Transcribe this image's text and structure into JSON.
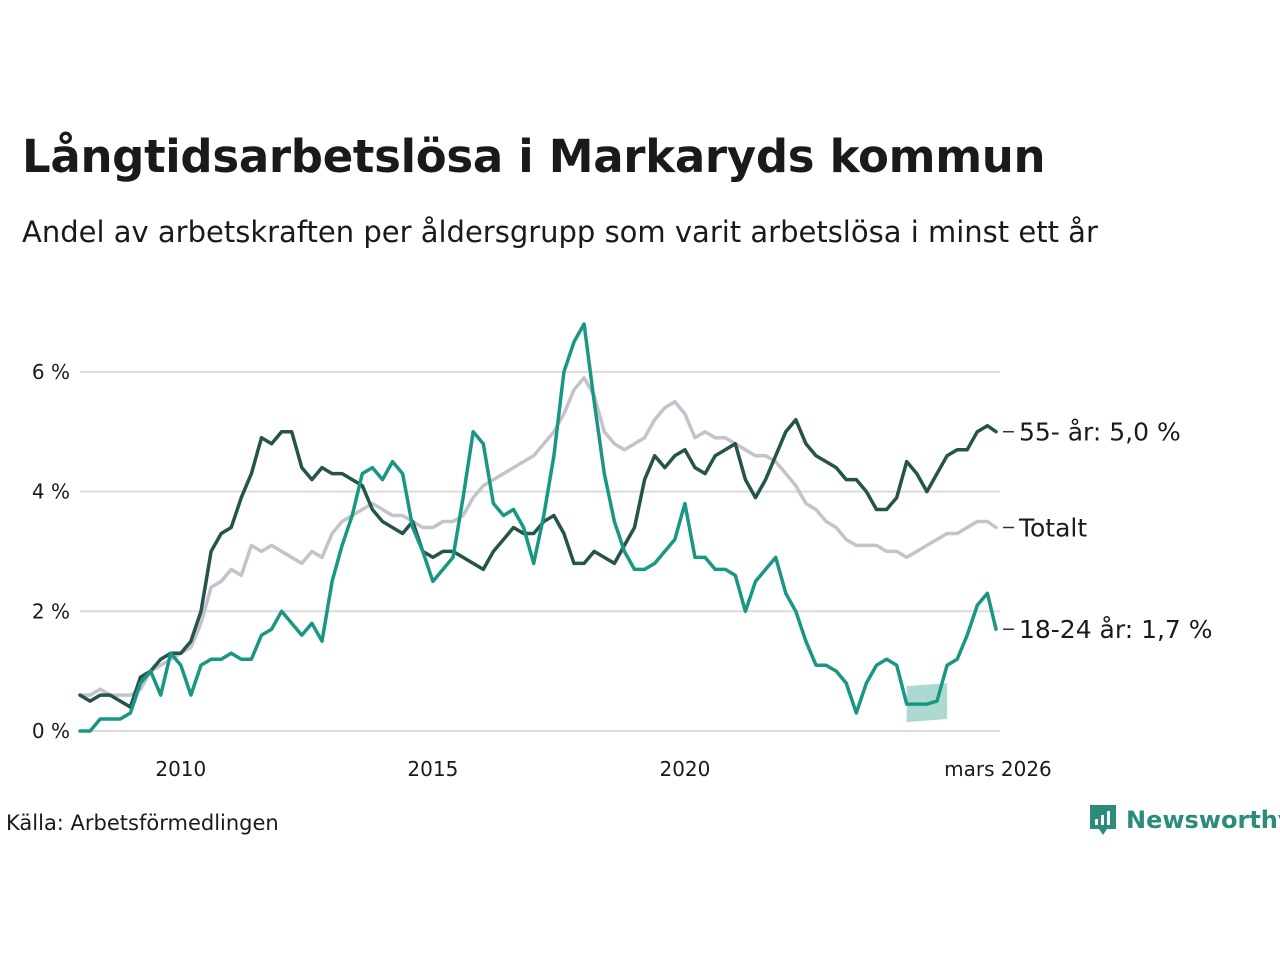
{
  "title": "Långtidsarbetslösa i Markaryds kommun",
  "subtitle": "Andel av arbetskraften per åldersgrupp som varit arbetslösa i minst ett år",
  "source": "Källa: Arbetsförmedlingen",
  "brand": {
    "name": "Newsworthy",
    "icon": "newsworthy-logo-icon",
    "color": "#2c8c7c"
  },
  "chart_data": {
    "type": "line",
    "title": "Långtidsarbetslösa i Markaryds kommun",
    "ylabel": "",
    "xlabel": "",
    "x_range": [
      2008.0,
      2026.25
    ],
    "ylim": [
      0,
      7
    ],
    "x_ticks": [
      {
        "value": 2010.0,
        "label": "2010"
      },
      {
        "value": 2015.0,
        "label": "2015"
      },
      {
        "value": 2020.0,
        "label": "2020"
      },
      {
        "value": 2026.17,
        "label": "mars 2026"
      }
    ],
    "y_ticks": [
      {
        "value": 0,
        "label": "0 %"
      },
      {
        "value": 2,
        "label": "2 %"
      },
      {
        "value": 4,
        "label": "4 %"
      },
      {
        "value": 6,
        "label": "6 %"
      }
    ],
    "grid": true,
    "series": [
      {
        "name": "Totalt",
        "label": "Totalt",
        "color": "#c4c2cc",
        "points": [
          [
            2008.0,
            0.6
          ],
          [
            2008.2,
            0.6
          ],
          [
            2008.4,
            0.7
          ],
          [
            2008.6,
            0.6
          ],
          [
            2008.8,
            0.6
          ],
          [
            2009.0,
            0.6
          ],
          [
            2009.2,
            0.7
          ],
          [
            2009.4,
            1.0
          ],
          [
            2009.6,
            1.1
          ],
          [
            2009.8,
            1.2
          ],
          [
            2010.0,
            1.3
          ],
          [
            2010.2,
            1.4
          ],
          [
            2010.4,
            1.8
          ],
          [
            2010.6,
            2.4
          ],
          [
            2010.8,
            2.5
          ],
          [
            2011.0,
            2.7
          ],
          [
            2011.2,
            2.6
          ],
          [
            2011.4,
            3.1
          ],
          [
            2011.6,
            3.0
          ],
          [
            2011.8,
            3.1
          ],
          [
            2012.0,
            3.0
          ],
          [
            2012.2,
            2.9
          ],
          [
            2012.4,
            2.8
          ],
          [
            2012.6,
            3.0
          ],
          [
            2012.8,
            2.9
          ],
          [
            2013.0,
            3.3
          ],
          [
            2013.2,
            3.5
          ],
          [
            2013.4,
            3.6
          ],
          [
            2013.6,
            3.7
          ],
          [
            2013.8,
            3.8
          ],
          [
            2014.0,
            3.7
          ],
          [
            2014.2,
            3.6
          ],
          [
            2014.4,
            3.6
          ],
          [
            2014.6,
            3.5
          ],
          [
            2014.8,
            3.4
          ],
          [
            2015.0,
            3.4
          ],
          [
            2015.2,
            3.5
          ],
          [
            2015.4,
            3.5
          ],
          [
            2015.6,
            3.6
          ],
          [
            2015.8,
            3.9
          ],
          [
            2016.0,
            4.1
          ],
          [
            2016.2,
            4.2
          ],
          [
            2016.4,
            4.3
          ],
          [
            2016.6,
            4.4
          ],
          [
            2016.8,
            4.5
          ],
          [
            2017.0,
            4.6
          ],
          [
            2017.2,
            4.8
          ],
          [
            2017.4,
            5.0
          ],
          [
            2017.6,
            5.3
          ],
          [
            2017.8,
            5.7
          ],
          [
            2018.0,
            5.9
          ],
          [
            2018.2,
            5.6
          ],
          [
            2018.4,
            5.0
          ],
          [
            2018.6,
            4.8
          ],
          [
            2018.8,
            4.7
          ],
          [
            2019.0,
            4.8
          ],
          [
            2019.2,
            4.9
          ],
          [
            2019.4,
            5.2
          ],
          [
            2019.6,
            5.4
          ],
          [
            2019.8,
            5.5
          ],
          [
            2020.0,
            5.3
          ],
          [
            2020.2,
            4.9
          ],
          [
            2020.4,
            5.0
          ],
          [
            2020.6,
            4.9
          ],
          [
            2020.8,
            4.9
          ],
          [
            2021.0,
            4.8
          ],
          [
            2021.2,
            4.7
          ],
          [
            2021.4,
            4.6
          ],
          [
            2021.6,
            4.6
          ],
          [
            2021.8,
            4.5
          ],
          [
            2022.0,
            4.3
          ],
          [
            2022.2,
            4.1
          ],
          [
            2022.4,
            3.8
          ],
          [
            2022.6,
            3.7
          ],
          [
            2022.8,
            3.5
          ],
          [
            2023.0,
            3.4
          ],
          [
            2023.2,
            3.2
          ],
          [
            2023.4,
            3.1
          ],
          [
            2023.6,
            3.1
          ],
          [
            2023.8,
            3.1
          ],
          [
            2024.0,
            3.0
          ],
          [
            2024.2,
            3.0
          ],
          [
            2024.4,
            2.9
          ],
          [
            2024.6,
            3.0
          ],
          [
            2024.8,
            3.1
          ],
          [
            2025.0,
            3.2
          ],
          [
            2025.2,
            3.3
          ],
          [
            2025.4,
            3.3
          ],
          [
            2025.6,
            3.4
          ],
          [
            2025.8,
            3.5
          ],
          [
            2026.0,
            3.5
          ],
          [
            2026.17,
            3.4
          ]
        ]
      },
      {
        "name": "55- år",
        "label": "55- år: 5,0 %",
        "color": "#24544a",
        "points": [
          [
            2008.0,
            0.6
          ],
          [
            2008.2,
            0.5
          ],
          [
            2008.4,
            0.6
          ],
          [
            2008.6,
            0.6
          ],
          [
            2008.8,
            0.5
          ],
          [
            2009.0,
            0.4
          ],
          [
            2009.2,
            0.9
          ],
          [
            2009.4,
            1.0
          ],
          [
            2009.6,
            1.2
          ],
          [
            2009.8,
            1.3
          ],
          [
            2010.0,
            1.3
          ],
          [
            2010.2,
            1.5
          ],
          [
            2010.4,
            2.0
          ],
          [
            2010.6,
            3.0
          ],
          [
            2010.8,
            3.3
          ],
          [
            2011.0,
            3.4
          ],
          [
            2011.2,
            3.9
          ],
          [
            2011.4,
            4.3
          ],
          [
            2011.6,
            4.9
          ],
          [
            2011.8,
            4.8
          ],
          [
            2012.0,
            5.0
          ],
          [
            2012.2,
            5.0
          ],
          [
            2012.4,
            4.4
          ],
          [
            2012.6,
            4.2
          ],
          [
            2012.8,
            4.4
          ],
          [
            2013.0,
            4.3
          ],
          [
            2013.2,
            4.3
          ],
          [
            2013.4,
            4.2
          ],
          [
            2013.6,
            4.1
          ],
          [
            2013.8,
            3.7
          ],
          [
            2014.0,
            3.5
          ],
          [
            2014.2,
            3.4
          ],
          [
            2014.4,
            3.3
          ],
          [
            2014.6,
            3.5
          ],
          [
            2014.8,
            3.0
          ],
          [
            2015.0,
            2.9
          ],
          [
            2015.2,
            3.0
          ],
          [
            2015.4,
            3.0
          ],
          [
            2015.6,
            2.9
          ],
          [
            2015.8,
            2.8
          ],
          [
            2016.0,
            2.7
          ],
          [
            2016.2,
            3.0
          ],
          [
            2016.4,
            3.2
          ],
          [
            2016.6,
            3.4
          ],
          [
            2016.8,
            3.3
          ],
          [
            2017.0,
            3.3
          ],
          [
            2017.2,
            3.5
          ],
          [
            2017.4,
            3.6
          ],
          [
            2017.6,
            3.3
          ],
          [
            2017.8,
            2.8
          ],
          [
            2018.0,
            2.8
          ],
          [
            2018.2,
            3.0
          ],
          [
            2018.4,
            2.9
          ],
          [
            2018.6,
            2.8
          ],
          [
            2018.8,
            3.1
          ],
          [
            2019.0,
            3.4
          ],
          [
            2019.2,
            4.2
          ],
          [
            2019.4,
            4.6
          ],
          [
            2019.6,
            4.4
          ],
          [
            2019.8,
            4.6
          ],
          [
            2020.0,
            4.7
          ],
          [
            2020.2,
            4.4
          ],
          [
            2020.4,
            4.3
          ],
          [
            2020.6,
            4.6
          ],
          [
            2020.8,
            4.7
          ],
          [
            2021.0,
            4.8
          ],
          [
            2021.2,
            4.2
          ],
          [
            2021.4,
            3.9
          ],
          [
            2021.6,
            4.2
          ],
          [
            2021.8,
            4.6
          ],
          [
            2022.0,
            5.0
          ],
          [
            2022.2,
            5.2
          ],
          [
            2022.4,
            4.8
          ],
          [
            2022.6,
            4.6
          ],
          [
            2022.8,
            4.5
          ],
          [
            2023.0,
            4.4
          ],
          [
            2023.2,
            4.2
          ],
          [
            2023.4,
            4.2
          ],
          [
            2023.6,
            4.0
          ],
          [
            2023.8,
            3.7
          ],
          [
            2024.0,
            3.7
          ],
          [
            2024.2,
            3.9
          ],
          [
            2024.4,
            4.5
          ],
          [
            2024.6,
            4.3
          ],
          [
            2024.8,
            4.0
          ],
          [
            2025.0,
            4.3
          ],
          [
            2025.2,
            4.6
          ],
          [
            2025.4,
            4.7
          ],
          [
            2025.6,
            4.7
          ],
          [
            2025.8,
            5.0
          ],
          [
            2026.0,
            5.1
          ],
          [
            2026.17,
            5.0
          ]
        ]
      },
      {
        "name": "18-24 år",
        "label": "18-24 år: 1,7 %",
        "color": "#1a9784",
        "points": [
          [
            2008.0,
            0.0
          ],
          [
            2008.2,
            0.0
          ],
          [
            2008.4,
            0.2
          ],
          [
            2008.6,
            0.2
          ],
          [
            2008.8,
            0.2
          ],
          [
            2009.0,
            0.3
          ],
          [
            2009.2,
            0.8
          ],
          [
            2009.4,
            1.0
          ],
          [
            2009.6,
            0.6
          ],
          [
            2009.8,
            1.3
          ],
          [
            2010.0,
            1.1
          ],
          [
            2010.2,
            0.6
          ],
          [
            2010.4,
            1.1
          ],
          [
            2010.6,
            1.2
          ],
          [
            2010.8,
            1.2
          ],
          [
            2011.0,
            1.3
          ],
          [
            2011.2,
            1.2
          ],
          [
            2011.4,
            1.2
          ],
          [
            2011.6,
            1.6
          ],
          [
            2011.8,
            1.7
          ],
          [
            2012.0,
            2.0
          ],
          [
            2012.2,
            1.8
          ],
          [
            2012.4,
            1.6
          ],
          [
            2012.6,
            1.8
          ],
          [
            2012.8,
            1.5
          ],
          [
            2013.0,
            2.5
          ],
          [
            2013.2,
            3.1
          ],
          [
            2013.4,
            3.6
          ],
          [
            2013.6,
            4.3
          ],
          [
            2013.8,
            4.4
          ],
          [
            2014.0,
            4.2
          ],
          [
            2014.2,
            4.5
          ],
          [
            2014.4,
            4.3
          ],
          [
            2014.6,
            3.4
          ],
          [
            2014.8,
            3.0
          ],
          [
            2015.0,
            2.5
          ],
          [
            2015.2,
            2.7
          ],
          [
            2015.4,
            2.9
          ],
          [
            2015.6,
            3.9
          ],
          [
            2015.8,
            5.0
          ],
          [
            2016.0,
            4.8
          ],
          [
            2016.2,
            3.8
          ],
          [
            2016.4,
            3.6
          ],
          [
            2016.6,
            3.7
          ],
          [
            2016.8,
            3.4
          ],
          [
            2017.0,
            2.8
          ],
          [
            2017.2,
            3.6
          ],
          [
            2017.4,
            4.6
          ],
          [
            2017.6,
            6.0
          ],
          [
            2017.8,
            6.5
          ],
          [
            2018.0,
            6.8
          ],
          [
            2018.2,
            5.5
          ],
          [
            2018.4,
            4.3
          ],
          [
            2018.6,
            3.5
          ],
          [
            2018.8,
            3.0
          ],
          [
            2019.0,
            2.7
          ],
          [
            2019.2,
            2.7
          ],
          [
            2019.4,
            2.8
          ],
          [
            2019.6,
            3.0
          ],
          [
            2019.8,
            3.2
          ],
          [
            2020.0,
            3.8
          ],
          [
            2020.2,
            2.9
          ],
          [
            2020.4,
            2.9
          ],
          [
            2020.6,
            2.7
          ],
          [
            2020.8,
            2.7
          ],
          [
            2021.0,
            2.6
          ],
          [
            2021.2,
            2.0
          ],
          [
            2021.4,
            2.5
          ],
          [
            2021.6,
            2.7
          ],
          [
            2021.8,
            2.9
          ],
          [
            2022.0,
            2.3
          ],
          [
            2022.2,
            2.0
          ],
          [
            2022.4,
            1.5
          ],
          [
            2022.6,
            1.1
          ],
          [
            2022.8,
            1.1
          ],
          [
            2023.0,
            1.0
          ],
          [
            2023.2,
            0.8
          ],
          [
            2023.4,
            0.3
          ],
          [
            2023.6,
            0.8
          ],
          [
            2023.8,
            1.1
          ],
          [
            2024.0,
            1.2
          ],
          [
            2024.2,
            1.1
          ],
          [
            2024.4,
            0.45
          ],
          [
            2024.6,
            0.45
          ],
          [
            2024.8,
            0.45
          ],
          [
            2025.0,
            0.5
          ],
          [
            2025.2,
            1.1
          ],
          [
            2025.4,
            1.2
          ],
          [
            2025.6,
            1.6
          ],
          [
            2025.8,
            2.1
          ],
          [
            2026.0,
            2.3
          ],
          [
            2026.17,
            1.7
          ]
        ],
        "uncertainty_band": {
          "x": [
            2024.4,
            2025.2
          ],
          "lower": 0.15,
          "upper": 0.75,
          "color": "#a8d8cf"
        }
      }
    ]
  }
}
